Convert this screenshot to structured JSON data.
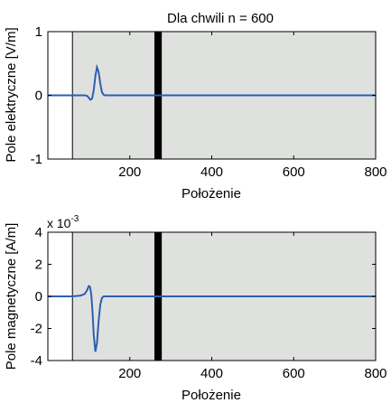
{
  "chart_data": [
    {
      "type": "line",
      "title": "Dla chwili n =  600",
      "xlabel": "Położenie",
      "ylabel": "Pole elektryczne [V/m]",
      "xlim": [
        0,
        800
      ],
      "ylim": [
        -1,
        1
      ],
      "xticks": [
        200,
        400,
        600,
        800
      ],
      "yticks": [
        -1,
        0,
        1
      ],
      "boundary_line_x": 60,
      "obstacle_x": [
        260,
        278
      ],
      "shaded_region_x": [
        60,
        800
      ],
      "series": [
        {
          "color": "#2c5fb0",
          "x": [
            0,
            60,
            90,
            96,
            100,
            104,
            108,
            112,
            116,
            120,
            124,
            128,
            132,
            136,
            140,
            150,
            180,
            270,
            800
          ],
          "y": [
            0,
            0,
            0,
            -0.01,
            -0.04,
            -0.07,
            -0.05,
            0.08,
            0.3,
            0.44,
            0.36,
            0.18,
            0.05,
            0.01,
            0.0,
            0.0,
            0.0,
            0.0,
            0.0
          ]
        }
      ]
    },
    {
      "type": "line",
      "title": "",
      "xlabel": "Położenie",
      "ylabel": "Pole magnetyczne [A/m]",
      "scale_label": "x 10",
      "scale_exponent": "-3",
      "xlim": [
        0,
        800
      ],
      "ylim": [
        -4,
        4
      ],
      "xticks": [
        200,
        400,
        600,
        800
      ],
      "yticks": [
        -4,
        -2,
        0,
        2,
        4
      ],
      "boundary_line_x": 60,
      "obstacle_x": [
        260,
        278
      ],
      "shaded_region_x": [
        60,
        800
      ],
      "series": [
        {
          "color": "#2c5fb0",
          "x": [
            0,
            60,
            80,
            90,
            95,
            100,
            103,
            106,
            109,
            112,
            116,
            120,
            124,
            128,
            132,
            136,
            140,
            150,
            180,
            800
          ],
          "y": [
            0,
            0,
            0.05,
            0.15,
            0.35,
            0.65,
            0.6,
            0.1,
            -1.0,
            -2.4,
            -3.45,
            -2.9,
            -1.5,
            -0.5,
            -0.1,
            0.0,
            0.0,
            0.0,
            0.0,
            0.0
          ]
        }
      ]
    }
  ]
}
